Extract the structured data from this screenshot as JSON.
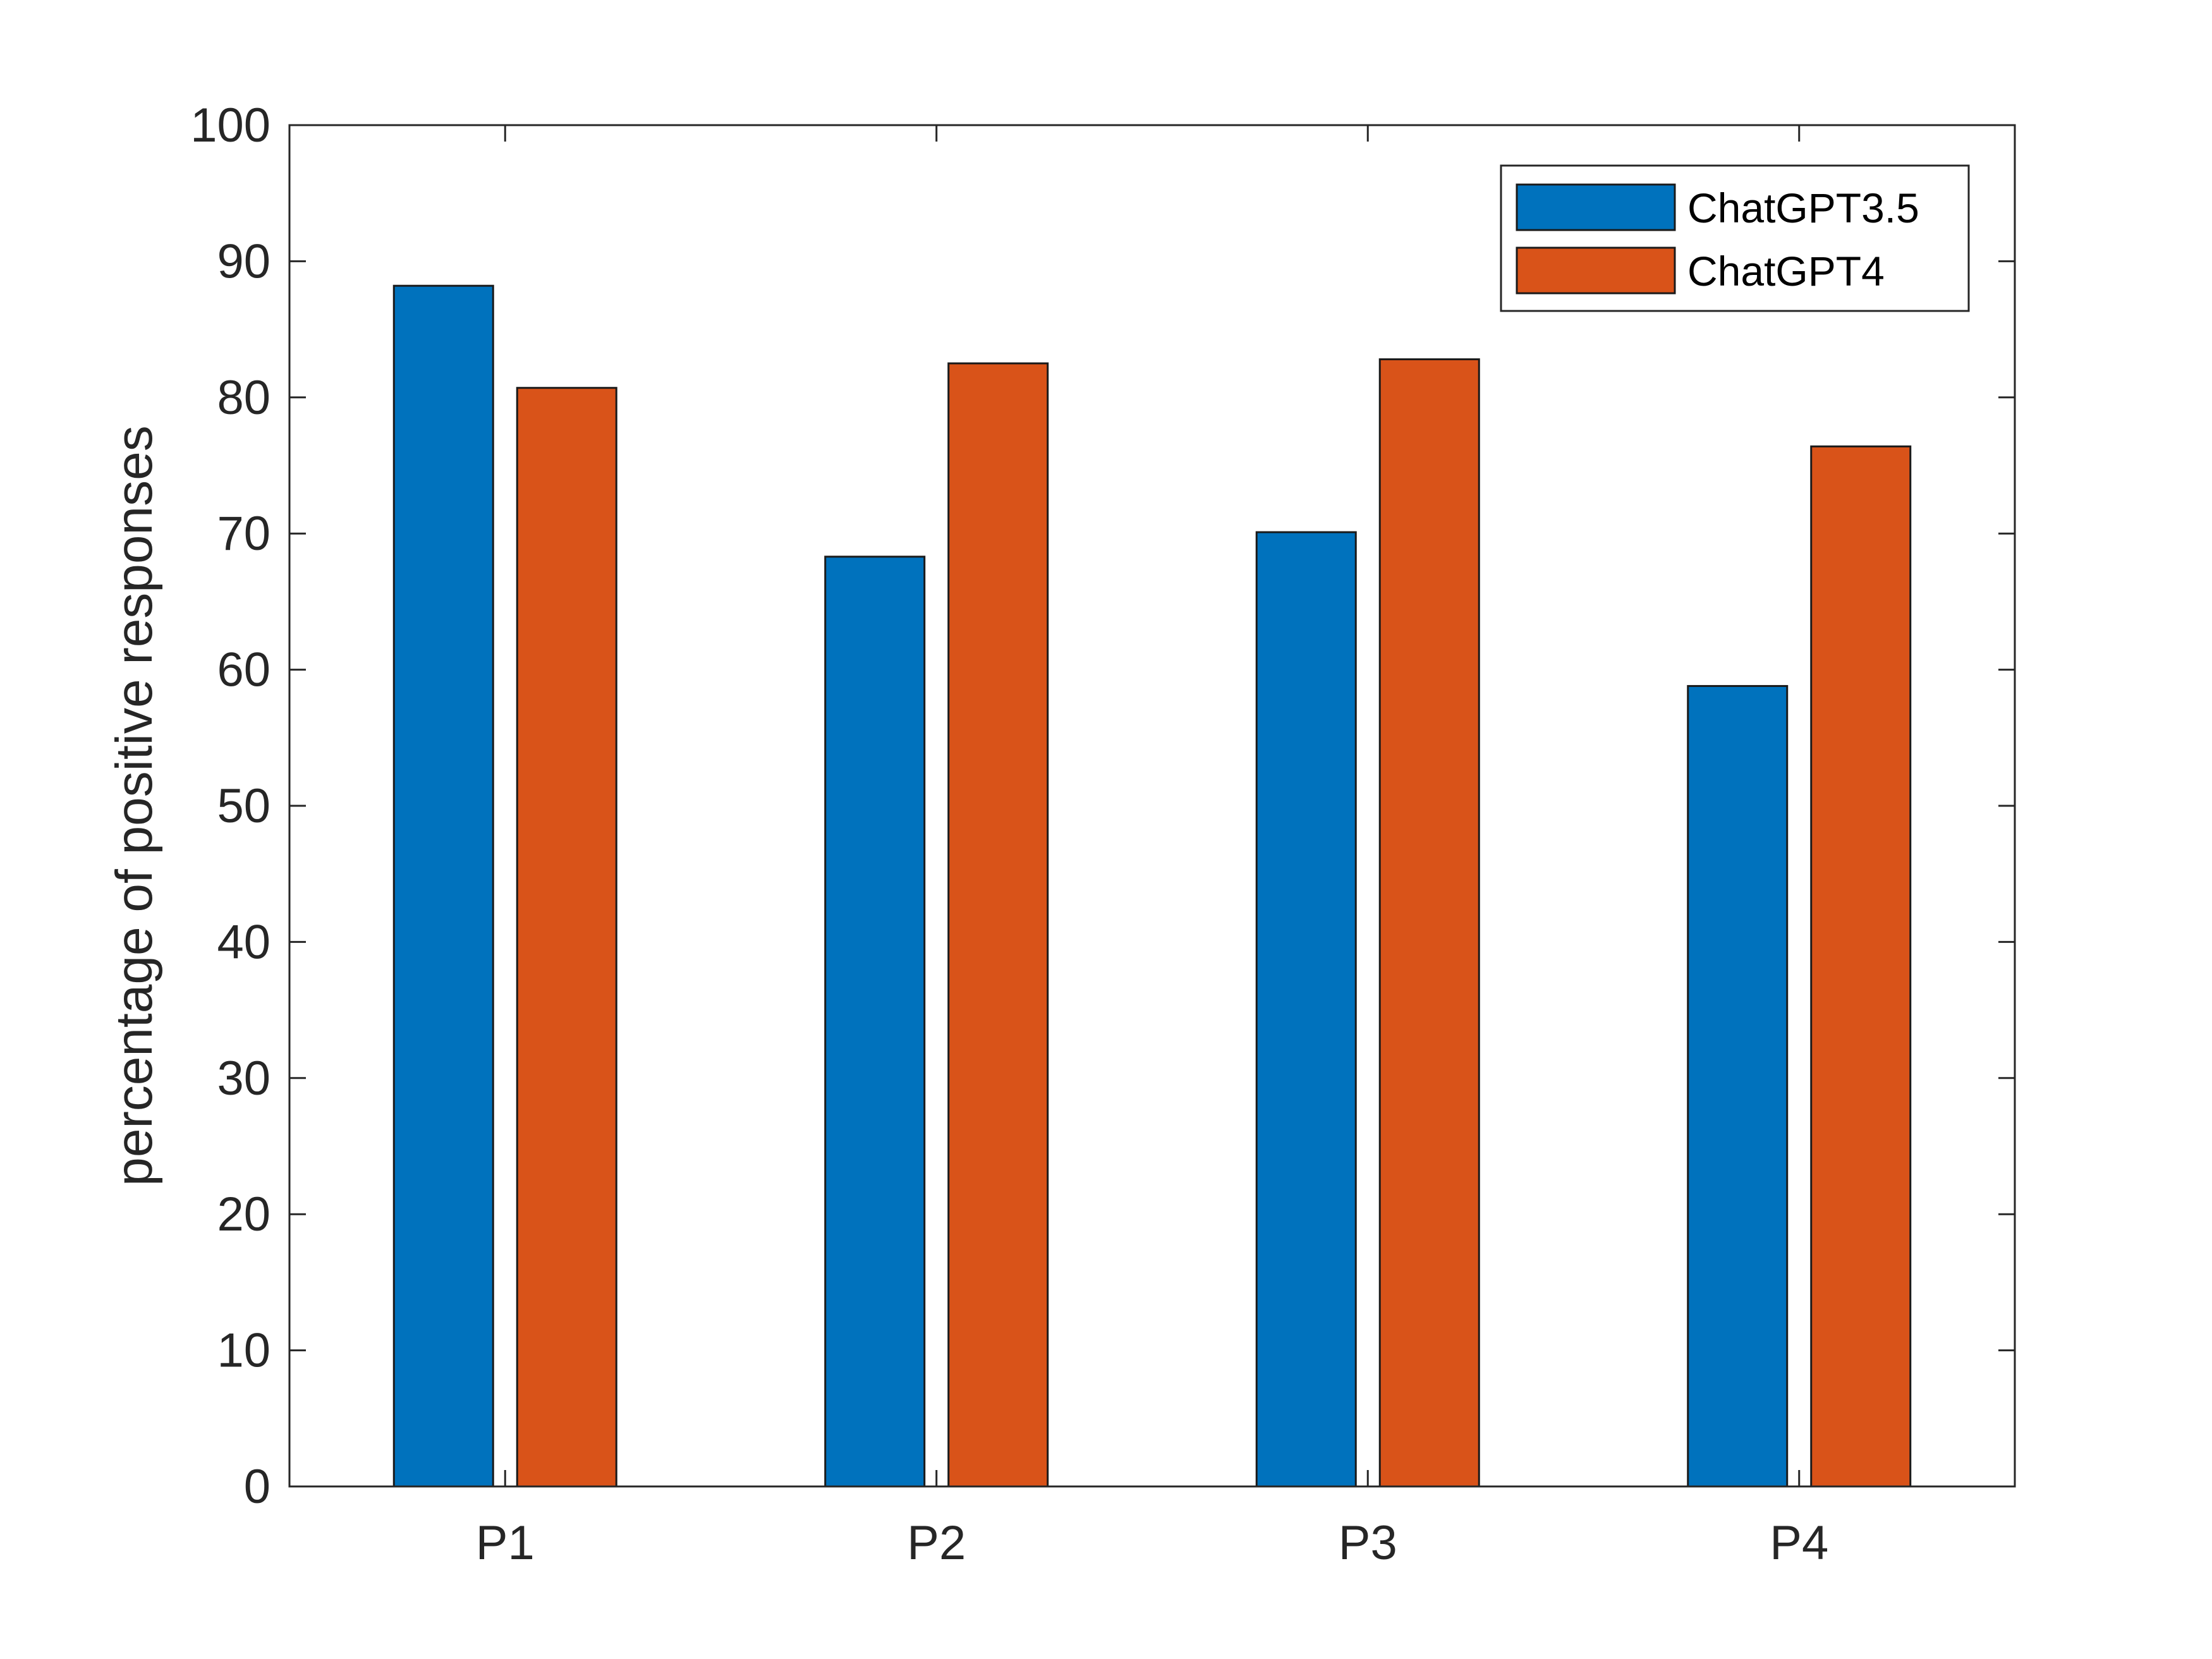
{
  "chart_data": {
    "type": "bar",
    "title": "",
    "xlabel": "",
    "ylabel": "percentage of positive responses",
    "categories": [
      "P1",
      "P2",
      "P3",
      "P4"
    ],
    "series": [
      {
        "name": "ChatGPT3.5",
        "color": "#0072bd",
        "values": [
          88.2,
          68.3,
          70.1,
          58.8
        ]
      },
      {
        "name": "ChatGPT4",
        "color": "#d95319",
        "values": [
          80.7,
          82.5,
          82.8,
          76.4
        ]
      }
    ],
    "ylim": [
      0,
      100
    ],
    "yticks": [
      0,
      10,
      20,
      30,
      40,
      50,
      60,
      70,
      80,
      90,
      100
    ],
    "grid": false,
    "legend_position": "top-right"
  }
}
